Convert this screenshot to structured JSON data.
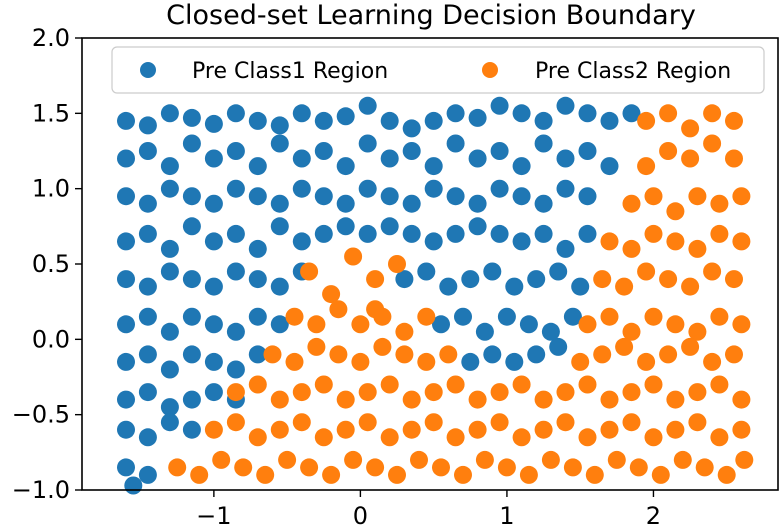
{
  "chart_data": {
    "type": "scatter",
    "title": "Closed-set Learning Decision Boundary",
    "xlabel": "",
    "ylabel": "",
    "xlim": [
      -1.9,
      2.85
    ],
    "ylim": [
      -1.0,
      2.0
    ],
    "xticks": [
      -1,
      0,
      1,
      2
    ],
    "xtick_labels": [
      "−1",
      "0",
      "1",
      "2"
    ],
    "yticks": [
      -1.0,
      -0.5,
      0.0,
      0.5,
      1.0,
      1.5,
      2.0
    ],
    "ytick_labels": [
      "−1.0",
      "−0.5",
      "0.0",
      "0.5",
      "1.0",
      "1.5",
      "2.0"
    ],
    "grid": false,
    "legend_position": "top",
    "series": [
      {
        "name": "Pre Class1 Region",
        "color": "#1f77b4",
        "points": [
          [
            -1.6,
            1.45
          ],
          [
            -1.45,
            1.42
          ],
          [
            -1.3,
            1.5
          ],
          [
            -1.15,
            1.47
          ],
          [
            -1.0,
            1.43
          ],
          [
            -0.85,
            1.5
          ],
          [
            -0.7,
            1.45
          ],
          [
            -0.55,
            1.42
          ],
          [
            -0.4,
            1.5
          ],
          [
            -0.25,
            1.45
          ],
          [
            -0.1,
            1.48
          ],
          [
            0.05,
            1.55
          ],
          [
            0.2,
            1.45
          ],
          [
            0.35,
            1.4
          ],
          [
            0.5,
            1.45
          ],
          [
            0.65,
            1.5
          ],
          [
            0.8,
            1.47
          ],
          [
            0.95,
            1.55
          ],
          [
            1.1,
            1.5
          ],
          [
            1.25,
            1.45
          ],
          [
            1.4,
            1.55
          ],
          [
            1.55,
            1.5
          ],
          [
            1.7,
            1.45
          ],
          [
            1.85,
            1.5
          ],
          [
            -1.6,
            1.2
          ],
          [
            -1.45,
            1.25
          ],
          [
            -1.3,
            1.15
          ],
          [
            -1.15,
            1.3
          ],
          [
            -1.0,
            1.2
          ],
          [
            -0.85,
            1.25
          ],
          [
            -0.7,
            1.15
          ],
          [
            -0.55,
            1.3
          ],
          [
            -0.4,
            1.2
          ],
          [
            -0.25,
            1.25
          ],
          [
            -0.1,
            1.15
          ],
          [
            0.05,
            1.3
          ],
          [
            0.2,
            1.2
          ],
          [
            0.35,
            1.25
          ],
          [
            0.5,
            1.15
          ],
          [
            0.65,
            1.3
          ],
          [
            0.8,
            1.2
          ],
          [
            0.95,
            1.25
          ],
          [
            1.1,
            1.15
          ],
          [
            1.25,
            1.3
          ],
          [
            1.4,
            1.2
          ],
          [
            1.55,
            1.25
          ],
          [
            1.7,
            1.15
          ],
          [
            -1.6,
            0.95
          ],
          [
            -1.45,
            0.9
          ],
          [
            -1.3,
            1.0
          ],
          [
            -1.15,
            0.95
          ],
          [
            -1.0,
            0.9
          ],
          [
            -0.85,
            1.0
          ],
          [
            -0.7,
            0.95
          ],
          [
            -0.55,
            0.9
          ],
          [
            -0.4,
            1.0
          ],
          [
            -0.25,
            0.95
          ],
          [
            -0.1,
            0.9
          ],
          [
            0.05,
            1.0
          ],
          [
            0.2,
            0.95
          ],
          [
            0.35,
            0.9
          ],
          [
            0.5,
            1.0
          ],
          [
            0.65,
            0.95
          ],
          [
            0.8,
            0.9
          ],
          [
            0.95,
            1.0
          ],
          [
            1.1,
            0.95
          ],
          [
            1.25,
            0.9
          ],
          [
            1.4,
            1.0
          ],
          [
            1.55,
            0.95
          ],
          [
            -1.6,
            0.65
          ],
          [
            -1.45,
            0.7
          ],
          [
            -1.3,
            0.6
          ],
          [
            -1.15,
            0.75
          ],
          [
            -1.0,
            0.65
          ],
          [
            -0.85,
            0.7
          ],
          [
            -0.7,
            0.6
          ],
          [
            -0.55,
            0.75
          ],
          [
            -0.4,
            0.65
          ],
          [
            -0.25,
            0.7
          ],
          [
            -0.1,
            0.75
          ],
          [
            0.05,
            0.7
          ],
          [
            0.2,
            0.75
          ],
          [
            0.35,
            0.7
          ],
          [
            0.5,
            0.65
          ],
          [
            0.65,
            0.7
          ],
          [
            0.8,
            0.75
          ],
          [
            0.95,
            0.7
          ],
          [
            1.1,
            0.65
          ],
          [
            1.25,
            0.7
          ],
          [
            1.4,
            0.6
          ],
          [
            1.55,
            0.7
          ],
          [
            -1.6,
            0.4
          ],
          [
            -1.45,
            0.35
          ],
          [
            -1.3,
            0.45
          ],
          [
            -1.15,
            0.4
          ],
          [
            -1.0,
            0.35
          ],
          [
            -0.85,
            0.45
          ],
          [
            -0.7,
            0.4
          ],
          [
            -0.55,
            0.35
          ],
          [
            -0.4,
            0.45
          ],
          [
            0.3,
            0.4
          ],
          [
            0.45,
            0.45
          ],
          [
            0.6,
            0.35
          ],
          [
            0.75,
            0.4
          ],
          [
            0.9,
            0.45
          ],
          [
            1.05,
            0.35
          ],
          [
            1.2,
            0.4
          ],
          [
            1.35,
            0.45
          ],
          [
            1.5,
            0.35
          ],
          [
            -1.6,
            0.1
          ],
          [
            -1.45,
            0.15
          ],
          [
            -1.3,
            0.05
          ],
          [
            -1.15,
            0.15
          ],
          [
            -1.0,
            0.1
          ],
          [
            -0.85,
            0.05
          ],
          [
            -0.7,
            0.15
          ],
          [
            -0.55,
            0.1
          ],
          [
            0.55,
            0.1
          ],
          [
            0.7,
            0.15
          ],
          [
            0.85,
            0.05
          ],
          [
            1.0,
            0.15
          ],
          [
            1.15,
            0.1
          ],
          [
            1.3,
            0.05
          ],
          [
            1.45,
            0.15
          ],
          [
            -1.6,
            -0.15
          ],
          [
            -1.45,
            -0.1
          ],
          [
            -1.3,
            -0.2
          ],
          [
            -1.15,
            -0.1
          ],
          [
            -1.0,
            -0.15
          ],
          [
            -0.85,
            -0.2
          ],
          [
            -0.7,
            -0.1
          ],
          [
            0.75,
            -0.15
          ],
          [
            0.9,
            -0.1
          ],
          [
            1.05,
            -0.15
          ],
          [
            1.2,
            -0.1
          ],
          [
            1.35,
            -0.05
          ],
          [
            -1.6,
            -0.4
          ],
          [
            -1.45,
            -0.35
          ],
          [
            -1.3,
            -0.45
          ],
          [
            -1.15,
            -0.4
          ],
          [
            -1.0,
            -0.35
          ],
          [
            -0.85,
            -0.4
          ],
          [
            -1.6,
            -0.6
          ],
          [
            -1.45,
            -0.65
          ],
          [
            -1.3,
            -0.55
          ],
          [
            -1.15,
            -0.6
          ],
          [
            -1.6,
            -0.85
          ],
          [
            -1.45,
            -0.9
          ],
          [
            -1.55,
            -0.97
          ]
        ]
      },
      {
        "name": "Pre Class2 Region",
        "color": "#ff7f0e",
        "points": [
          [
            1.95,
            1.45
          ],
          [
            2.1,
            1.5
          ],
          [
            2.25,
            1.4
          ],
          [
            2.4,
            1.5
          ],
          [
            2.55,
            1.45
          ],
          [
            2.1,
            1.25
          ],
          [
            2.25,
            1.2
          ],
          [
            2.4,
            1.3
          ],
          [
            2.55,
            1.2
          ],
          [
            1.95,
            1.15
          ],
          [
            1.85,
            0.9
          ],
          [
            2.0,
            0.95
          ],
          [
            2.15,
            0.85
          ],
          [
            2.3,
            0.95
          ],
          [
            2.45,
            0.9
          ],
          [
            2.6,
            0.95
          ],
          [
            1.7,
            0.65
          ],
          [
            1.85,
            0.6
          ],
          [
            2.0,
            0.7
          ],
          [
            2.15,
            0.65
          ],
          [
            2.3,
            0.6
          ],
          [
            2.45,
            0.7
          ],
          [
            2.6,
            0.65
          ],
          [
            -0.35,
            0.45
          ],
          [
            -0.2,
            0.3
          ],
          [
            -0.05,
            0.55
          ],
          [
            0.1,
            0.4
          ],
          [
            0.25,
            0.5
          ],
          [
            0.1,
            0.2
          ],
          [
            1.65,
            0.4
          ],
          [
            1.8,
            0.35
          ],
          [
            1.95,
            0.45
          ],
          [
            2.1,
            0.4
          ],
          [
            2.25,
            0.35
          ],
          [
            2.4,
            0.45
          ],
          [
            2.55,
            0.4
          ],
          [
            -0.45,
            0.15
          ],
          [
            -0.3,
            0.1
          ],
          [
            -0.15,
            0.2
          ],
          [
            0.0,
            0.1
          ],
          [
            0.15,
            0.15
          ],
          [
            0.3,
            0.05
          ],
          [
            0.45,
            0.15
          ],
          [
            1.55,
            0.1
          ],
          [
            1.7,
            0.15
          ],
          [
            1.85,
            0.05
          ],
          [
            2.0,
            0.15
          ],
          [
            2.15,
            0.1
          ],
          [
            2.3,
            0.05
          ],
          [
            2.45,
            0.15
          ],
          [
            2.6,
            0.1
          ],
          [
            -0.6,
            -0.1
          ],
          [
            -0.45,
            -0.15
          ],
          [
            -0.3,
            -0.05
          ],
          [
            -0.15,
            -0.1
          ],
          [
            0.0,
            -0.15
          ],
          [
            0.15,
            -0.05
          ],
          [
            0.3,
            -0.1
          ],
          [
            0.45,
            -0.15
          ],
          [
            0.6,
            -0.1
          ],
          [
            1.5,
            -0.15
          ],
          [
            1.65,
            -0.1
          ],
          [
            1.8,
            -0.05
          ],
          [
            1.95,
            -0.15
          ],
          [
            2.1,
            -0.1
          ],
          [
            2.25,
            -0.05
          ],
          [
            2.4,
            -0.15
          ],
          [
            2.55,
            -0.1
          ],
          [
            -0.85,
            -0.35
          ],
          [
            -0.7,
            -0.3
          ],
          [
            -0.55,
            -0.4
          ],
          [
            -0.4,
            -0.35
          ],
          [
            -0.25,
            -0.3
          ],
          [
            -0.1,
            -0.4
          ],
          [
            0.05,
            -0.35
          ],
          [
            0.2,
            -0.3
          ],
          [
            0.35,
            -0.4
          ],
          [
            0.5,
            -0.35
          ],
          [
            0.65,
            -0.3
          ],
          [
            0.8,
            -0.4
          ],
          [
            0.95,
            -0.35
          ],
          [
            1.1,
            -0.3
          ],
          [
            1.25,
            -0.4
          ],
          [
            1.4,
            -0.35
          ],
          [
            1.55,
            -0.3
          ],
          [
            1.7,
            -0.4
          ],
          [
            1.85,
            -0.35
          ],
          [
            2.0,
            -0.3
          ],
          [
            2.15,
            -0.4
          ],
          [
            2.3,
            -0.35
          ],
          [
            2.45,
            -0.3
          ],
          [
            2.6,
            -0.4
          ],
          [
            -1.0,
            -0.6
          ],
          [
            -0.85,
            -0.55
          ],
          [
            -0.7,
            -0.65
          ],
          [
            -0.55,
            -0.6
          ],
          [
            -0.4,
            -0.55
          ],
          [
            -0.25,
            -0.65
          ],
          [
            -0.1,
            -0.6
          ],
          [
            0.05,
            -0.55
          ],
          [
            0.2,
            -0.65
          ],
          [
            0.35,
            -0.6
          ],
          [
            0.5,
            -0.55
          ],
          [
            0.65,
            -0.65
          ],
          [
            0.8,
            -0.6
          ],
          [
            0.95,
            -0.55
          ],
          [
            1.1,
            -0.65
          ],
          [
            1.25,
            -0.6
          ],
          [
            1.4,
            -0.55
          ],
          [
            1.55,
            -0.65
          ],
          [
            1.7,
            -0.6
          ],
          [
            1.85,
            -0.55
          ],
          [
            2.0,
            -0.65
          ],
          [
            2.15,
            -0.6
          ],
          [
            2.3,
            -0.55
          ],
          [
            2.45,
            -0.65
          ],
          [
            2.6,
            -0.6
          ],
          [
            -1.25,
            -0.85
          ],
          [
            -1.1,
            -0.9
          ],
          [
            -0.95,
            -0.8
          ],
          [
            -0.8,
            -0.85
          ],
          [
            -0.65,
            -0.9
          ],
          [
            -0.5,
            -0.8
          ],
          [
            -0.35,
            -0.85
          ],
          [
            -0.2,
            -0.9
          ],
          [
            -0.05,
            -0.8
          ],
          [
            0.1,
            -0.85
          ],
          [
            0.25,
            -0.9
          ],
          [
            0.4,
            -0.8
          ],
          [
            0.55,
            -0.85
          ],
          [
            0.7,
            -0.9
          ],
          [
            0.85,
            -0.8
          ],
          [
            1.0,
            -0.85
          ],
          [
            1.15,
            -0.9
          ],
          [
            1.3,
            -0.8
          ],
          [
            1.45,
            -0.85
          ],
          [
            1.6,
            -0.9
          ],
          [
            1.75,
            -0.8
          ],
          [
            1.9,
            -0.85
          ],
          [
            2.05,
            -0.9
          ],
          [
            2.2,
            -0.8
          ],
          [
            2.35,
            -0.85
          ],
          [
            2.5,
            -0.9
          ],
          [
            2.62,
            -0.8
          ]
        ]
      }
    ]
  }
}
